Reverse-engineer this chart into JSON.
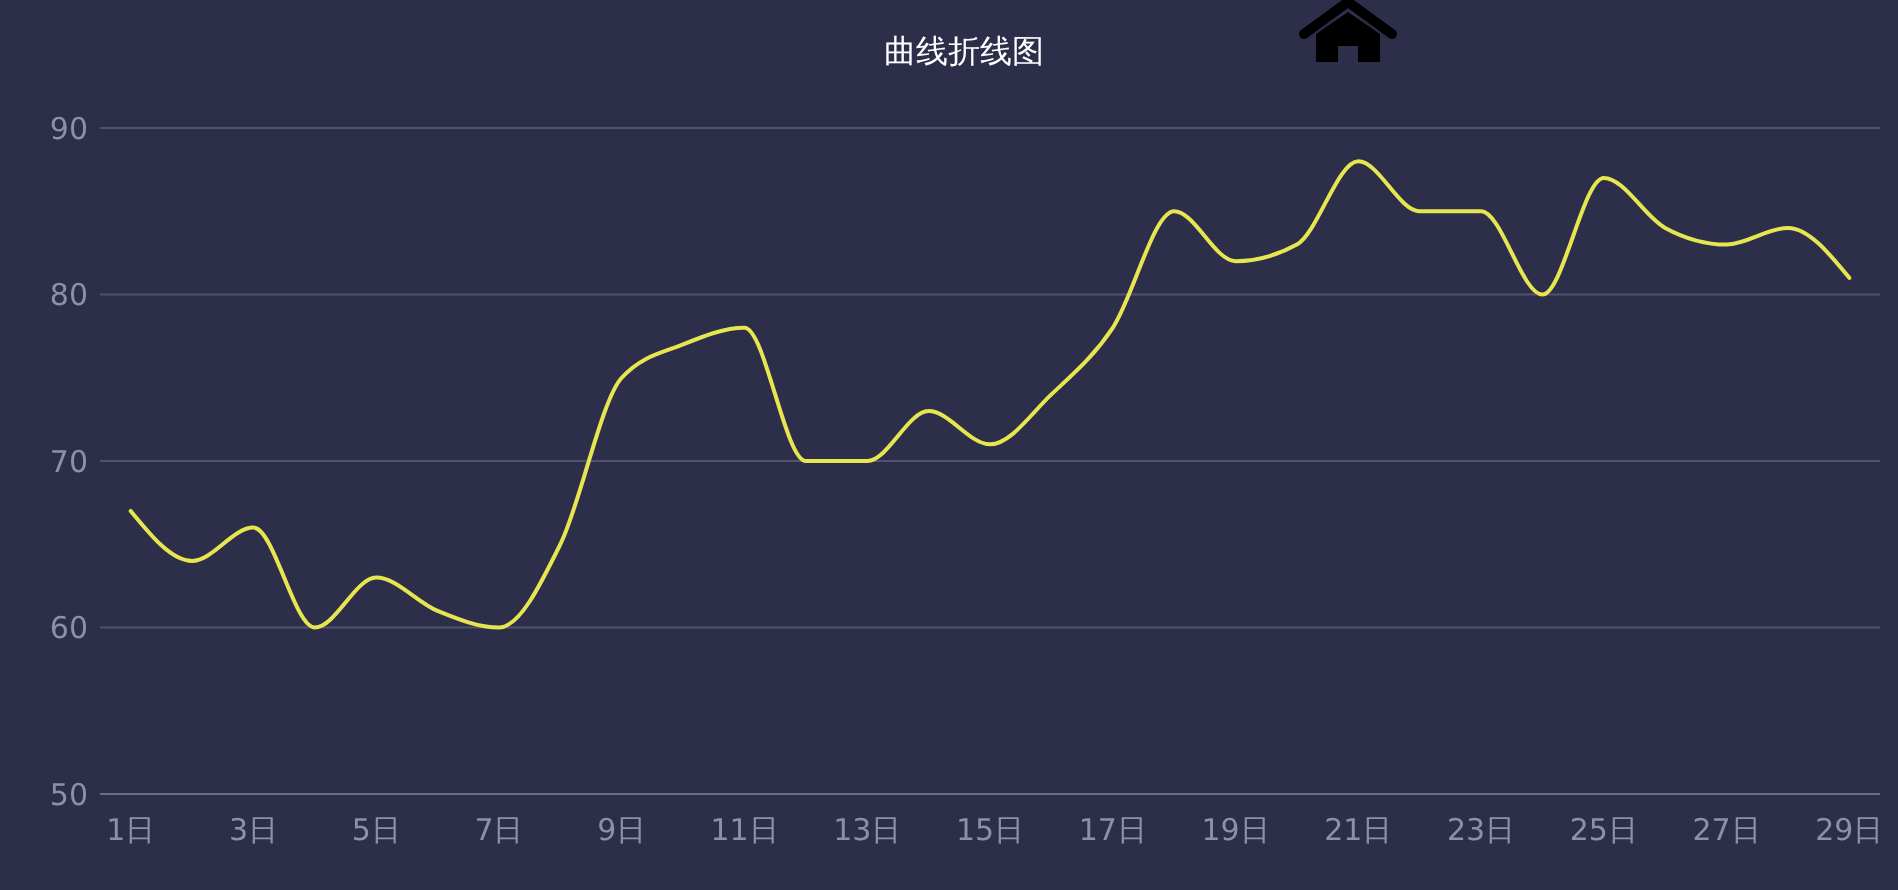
{
  "chart_data": {
    "type": "line",
    "title": "曲线折线图",
    "categories": [
      "1日",
      null,
      "3日",
      null,
      "5日",
      null,
      "7日",
      null,
      "9日",
      null,
      "11日",
      null,
      "13日",
      null,
      "15日",
      null,
      "17日",
      null,
      "19日",
      null,
      "21日",
      null,
      "23日",
      null,
      "25日",
      null,
      "27日",
      null,
      "29日"
    ],
    "values": [
      67,
      64,
      66,
      60,
      63,
      61,
      60,
      65,
      75,
      77,
      78,
      70,
      70,
      73,
      71,
      74,
      78,
      85,
      82,
      83,
      88,
      85,
      85,
      80,
      87,
      84,
      83,
      84,
      81
    ],
    "color": "#e6e650",
    "ylim": [
      50,
      90
    ],
    "yticks": [
      50,
      60,
      70,
      80,
      90
    ],
    "grid": "y",
    "marker": "none"
  }
}
